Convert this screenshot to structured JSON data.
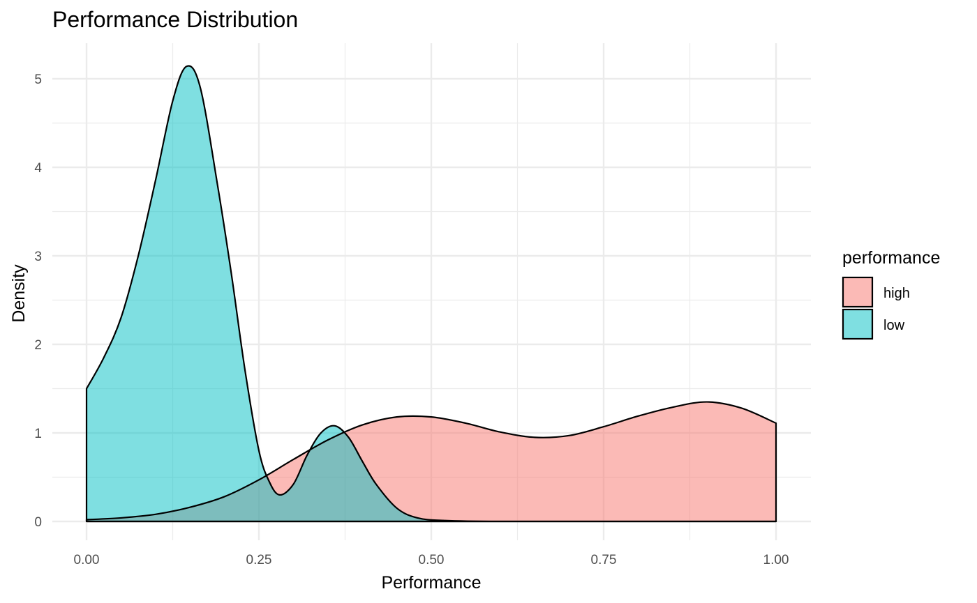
{
  "chart_data": {
    "type": "area",
    "title": "Performance Distribution",
    "xlabel": "Performance",
    "ylabel": "Density",
    "xlim": [
      0,
      1
    ],
    "ylim": [
      0,
      5.14
    ],
    "x_ticks": [
      "0.00",
      "0.25",
      "0.50",
      "0.75",
      "1.00"
    ],
    "y_ticks": [
      "0",
      "1",
      "2",
      "3",
      "4",
      "5"
    ],
    "grid": true,
    "legend": {
      "title": "performance",
      "placement": "right"
    },
    "series": [
      {
        "name": "high",
        "color": "#F8766D",
        "points": [
          [
            0.0,
            0.02
          ],
          [
            0.05,
            0.04
          ],
          [
            0.1,
            0.08
          ],
          [
            0.15,
            0.16
          ],
          [
            0.2,
            0.28
          ],
          [
            0.25,
            0.47
          ],
          [
            0.3,
            0.7
          ],
          [
            0.35,
            0.92
          ],
          [
            0.4,
            1.09
          ],
          [
            0.45,
            1.18
          ],
          [
            0.5,
            1.18
          ],
          [
            0.55,
            1.11
          ],
          [
            0.6,
            1.01
          ],
          [
            0.65,
            0.95
          ],
          [
            0.7,
            0.97
          ],
          [
            0.75,
            1.07
          ],
          [
            0.8,
            1.19
          ],
          [
            0.85,
            1.29
          ],
          [
            0.9,
            1.35
          ],
          [
            0.95,
            1.28
          ],
          [
            1.0,
            1.11
          ]
        ]
      },
      {
        "name": "low",
        "color": "#00BFC4",
        "points": [
          [
            0.0,
            1.5
          ],
          [
            0.025,
            1.85
          ],
          [
            0.05,
            2.3
          ],
          [
            0.075,
            3.0
          ],
          [
            0.1,
            3.85
          ],
          [
            0.125,
            4.75
          ],
          [
            0.145,
            5.14
          ],
          [
            0.165,
            4.9
          ],
          [
            0.19,
            3.8
          ],
          [
            0.21,
            2.8
          ],
          [
            0.23,
            1.7
          ],
          [
            0.25,
            0.8
          ],
          [
            0.265,
            0.45
          ],
          [
            0.28,
            0.3
          ],
          [
            0.3,
            0.42
          ],
          [
            0.32,
            0.75
          ],
          [
            0.34,
            1.0
          ],
          [
            0.36,
            1.08
          ],
          [
            0.38,
            0.95
          ],
          [
            0.4,
            0.68
          ],
          [
            0.42,
            0.42
          ],
          [
            0.45,
            0.15
          ],
          [
            0.48,
            0.04
          ],
          [
            0.52,
            0.01
          ],
          [
            0.6,
            0.0
          ],
          [
            0.8,
            0.0
          ],
          [
            1.0,
            0.0
          ]
        ]
      }
    ]
  }
}
